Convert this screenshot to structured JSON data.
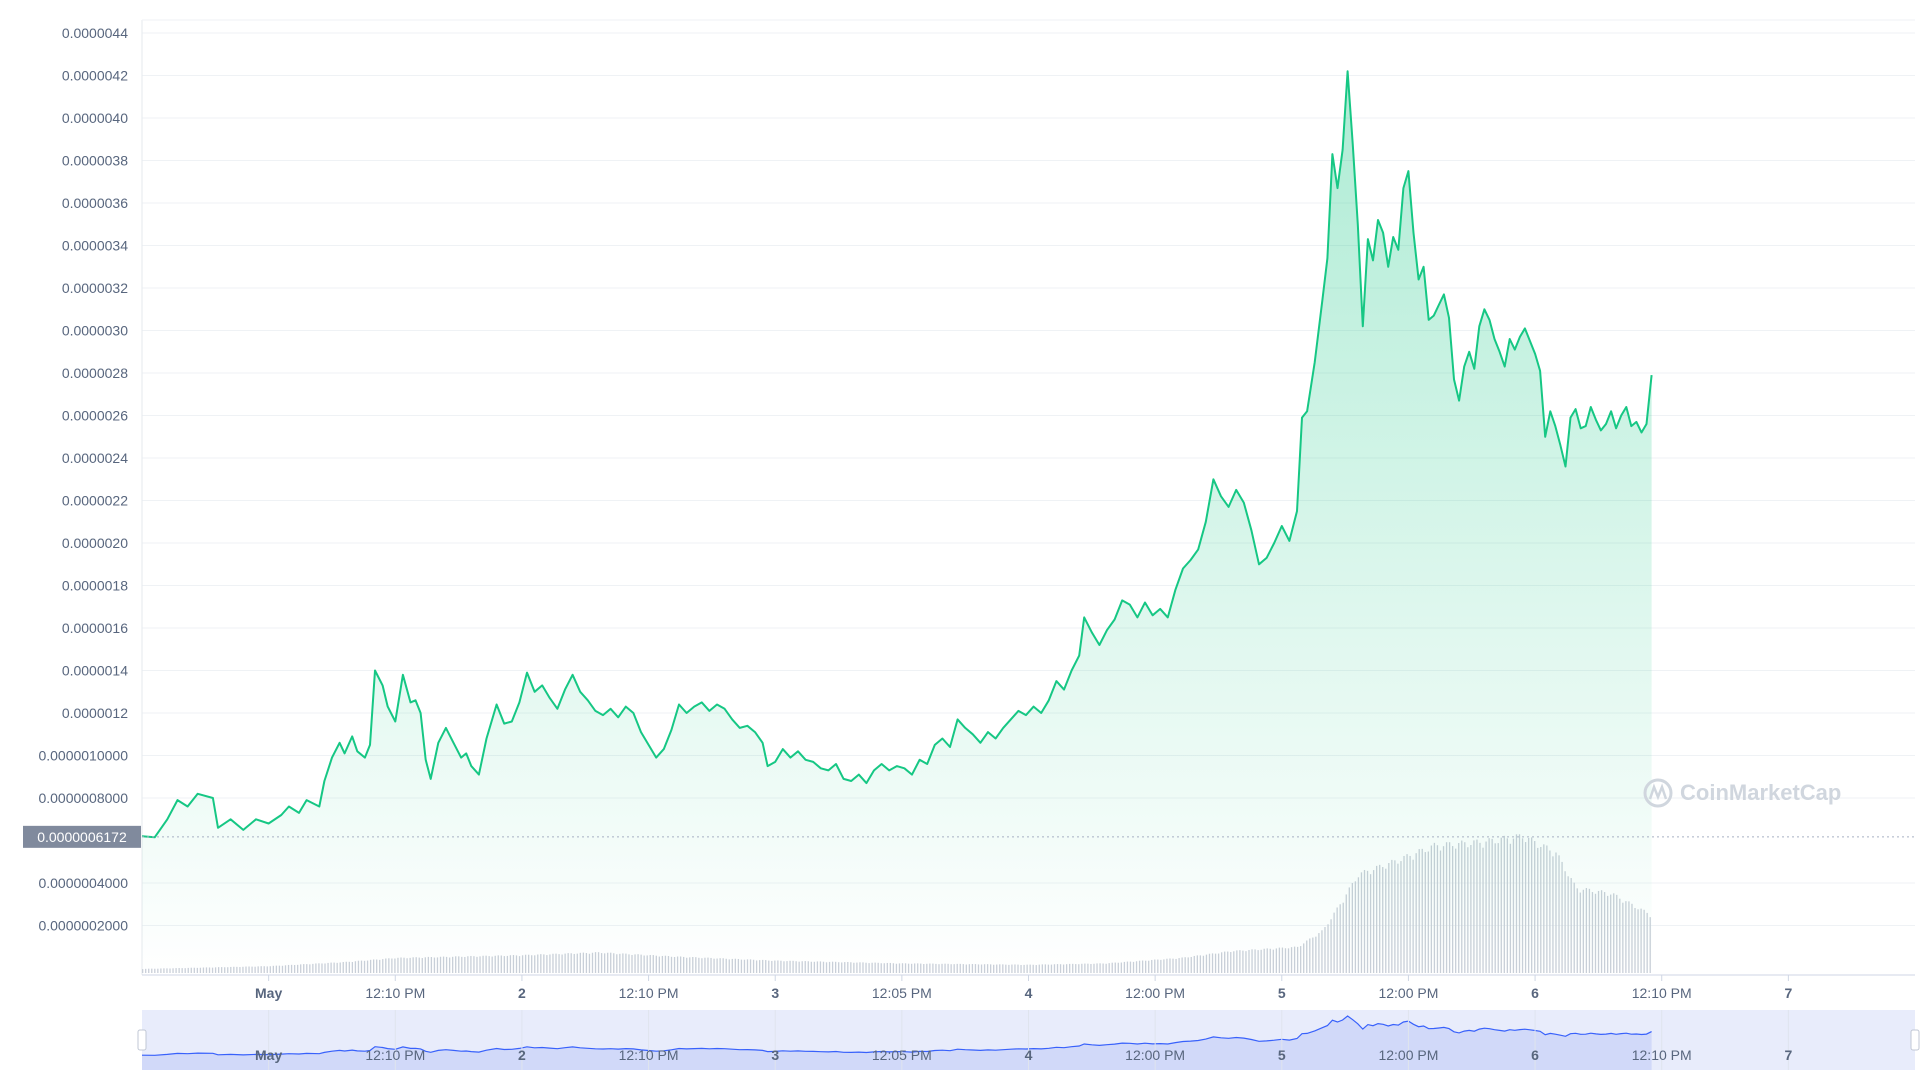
{
  "watermark": "CoinMarketCap",
  "current_price_label": "0.0000006172",
  "colors": {
    "line": "#16c784",
    "area_top": "#16c784",
    "volume_bar": "#c9cfd8",
    "navigator_fill": "#e8ecfb",
    "navigator_line": "#3861fb",
    "label_bg": "#808a9d"
  },
  "chart_data": {
    "type": "area",
    "title": "",
    "xlabel": "",
    "ylabel": "",
    "ylim": [
      0.0,
      4.4e-06
    ],
    "y_ticks": [
      {
        "v": 4.4e-06,
        "label": "0.0000044"
      },
      {
        "v": 4.2e-06,
        "label": "0.0000042"
      },
      {
        "v": 4e-06,
        "label": "0.0000040"
      },
      {
        "v": 3.8e-06,
        "label": "0.0000038"
      },
      {
        "v": 3.6e-06,
        "label": "0.0000036"
      },
      {
        "v": 3.4e-06,
        "label": "0.0000034"
      },
      {
        "v": 3.2e-06,
        "label": "0.0000032"
      },
      {
        "v": 3e-06,
        "label": "0.0000030"
      },
      {
        "v": 2.8e-06,
        "label": "0.0000028"
      },
      {
        "v": 2.6e-06,
        "label": "0.0000026"
      },
      {
        "v": 2.4e-06,
        "label": "0.0000024"
      },
      {
        "v": 2.2e-06,
        "label": "0.0000022"
      },
      {
        "v": 2e-06,
        "label": "0.0000020"
      },
      {
        "v": 1.8e-06,
        "label": "0.0000018"
      },
      {
        "v": 1.6e-06,
        "label": "0.0000016"
      },
      {
        "v": 1.4e-06,
        "label": "0.0000014"
      },
      {
        "v": 1.2e-06,
        "label": "0.0000012"
      },
      {
        "v": 1e-06,
        "label": "0.0000010000"
      },
      {
        "v": 8e-07,
        "label": "0.0000008000"
      },
      {
        "v": 4e-07,
        "label": "0.0000004000"
      },
      {
        "v": 2e-07,
        "label": "0.0000002000"
      }
    ],
    "x_ticks": [
      {
        "t": 0.5,
        "label": "May",
        "day": true
      },
      {
        "t": 1.0,
        "label": "12:10 PM",
        "day": false
      },
      {
        "t": 1.5,
        "label": "2",
        "day": true
      },
      {
        "t": 2.0,
        "label": "12:10 PM",
        "day": false
      },
      {
        "t": 2.5,
        "label": "3",
        "day": true
      },
      {
        "t": 3.0,
        "label": "12:05 PM",
        "day": false
      },
      {
        "t": 3.5,
        "label": "4",
        "day": true
      },
      {
        "t": 4.0,
        "label": "12:00 PM",
        "day": false
      },
      {
        "t": 4.5,
        "label": "5",
        "day": true
      },
      {
        "t": 5.0,
        "label": "12:00 PM",
        "day": false
      },
      {
        "t": 5.5,
        "label": "6",
        "day": true
      },
      {
        "t": 6.0,
        "label": "12:10 PM",
        "day": false
      },
      {
        "t": 6.5,
        "label": "7",
        "day": true
      }
    ],
    "xlim": [
      0.0,
      7.0
    ],
    "series": [
      {
        "values": [
          [
            0.0,
            6.2e-07
          ],
          [
            0.05,
            6.15e-07
          ],
          [
            0.1,
            7e-07
          ],
          [
            0.14,
            7.9e-07
          ],
          [
            0.18,
            7.6e-07
          ],
          [
            0.22,
            8.2e-07
          ],
          [
            0.28,
            8e-07
          ],
          [
            0.3,
            6.6e-07
          ],
          [
            0.35,
            7e-07
          ],
          [
            0.4,
            6.5e-07
          ],
          [
            0.45,
            7e-07
          ],
          [
            0.5,
            6.8e-07
          ],
          [
            0.55,
            7.2e-07
          ],
          [
            0.58,
            7.6e-07
          ],
          [
            0.62,
            7.3e-07
          ],
          [
            0.65,
            7.9e-07
          ],
          [
            0.7,
            7.6e-07
          ],
          [
            0.72,
            8.8e-07
          ],
          [
            0.75,
            9.9e-07
          ],
          [
            0.78,
            1.06e-06
          ],
          [
            0.8,
            1.01e-06
          ],
          [
            0.83,
            1.09e-06
          ],
          [
            0.85,
            1.02e-06
          ],
          [
            0.88,
            9.9e-07
          ],
          [
            0.9,
            1.05e-06
          ],
          [
            0.92,
            1.4e-06
          ],
          [
            0.95,
            1.33e-06
          ],
          [
            0.97,
            1.23e-06
          ],
          [
            1.0,
            1.16e-06
          ],
          [
            1.03,
            1.38e-06
          ],
          [
            1.06,
            1.25e-06
          ],
          [
            1.08,
            1.26e-06
          ],
          [
            1.1,
            1.2e-06
          ],
          [
            1.12,
            9.8e-07
          ],
          [
            1.14,
            8.9e-07
          ],
          [
            1.17,
            1.06e-06
          ],
          [
            1.2,
            1.13e-06
          ],
          [
            1.23,
            1.06e-06
          ],
          [
            1.26,
            9.9e-07
          ],
          [
            1.28,
            1.01e-06
          ],
          [
            1.3,
            9.5e-07
          ],
          [
            1.33,
            9.1e-07
          ],
          [
            1.36,
            1.08e-06
          ],
          [
            1.4,
            1.24e-06
          ],
          [
            1.43,
            1.15e-06
          ],
          [
            1.46,
            1.16e-06
          ],
          [
            1.49,
            1.25e-06
          ],
          [
            1.52,
            1.39e-06
          ],
          [
            1.55,
            1.3e-06
          ],
          [
            1.58,
            1.33e-06
          ],
          [
            1.61,
            1.27e-06
          ],
          [
            1.64,
            1.22e-06
          ],
          [
            1.67,
            1.31e-06
          ],
          [
            1.7,
            1.38e-06
          ],
          [
            1.73,
            1.3e-06
          ],
          [
            1.76,
            1.26e-06
          ],
          [
            1.79,
            1.21e-06
          ],
          [
            1.82,
            1.19e-06
          ],
          [
            1.85,
            1.22e-06
          ],
          [
            1.88,
            1.18e-06
          ],
          [
            1.91,
            1.23e-06
          ],
          [
            1.94,
            1.2e-06
          ],
          [
            1.97,
            1.11e-06
          ],
          [
            2.0,
            1.05e-06
          ],
          [
            2.03,
            9.9e-07
          ],
          [
            2.06,
            1.03e-06
          ],
          [
            2.09,
            1.12e-06
          ],
          [
            2.12,
            1.24e-06
          ],
          [
            2.15,
            1.2e-06
          ],
          [
            2.18,
            1.23e-06
          ],
          [
            2.21,
            1.25e-06
          ],
          [
            2.24,
            1.21e-06
          ],
          [
            2.27,
            1.24e-06
          ],
          [
            2.3,
            1.22e-06
          ],
          [
            2.33,
            1.17e-06
          ],
          [
            2.36,
            1.13e-06
          ],
          [
            2.39,
            1.14e-06
          ],
          [
            2.42,
            1.11e-06
          ],
          [
            2.45,
            1.06e-06
          ],
          [
            2.47,
            9.5e-07
          ],
          [
            2.5,
            9.7e-07
          ],
          [
            2.53,
            1.03e-06
          ],
          [
            2.56,
            9.9e-07
          ],
          [
            2.59,
            1.02e-06
          ],
          [
            2.62,
            9.8e-07
          ],
          [
            2.65,
            9.7e-07
          ],
          [
            2.68,
            9.4e-07
          ],
          [
            2.71,
            9.3e-07
          ],
          [
            2.74,
            9.6e-07
          ],
          [
            2.77,
            8.9e-07
          ],
          [
            2.8,
            8.8e-07
          ],
          [
            2.83,
            9.1e-07
          ],
          [
            2.86,
            8.7e-07
          ],
          [
            2.89,
            9.3e-07
          ],
          [
            2.92,
            9.6e-07
          ],
          [
            2.95,
            9.3e-07
          ],
          [
            2.98,
            9.5e-07
          ],
          [
            3.01,
            9.4e-07
          ],
          [
            3.04,
            9.1e-07
          ],
          [
            3.07,
            9.8e-07
          ],
          [
            3.1,
            9.6e-07
          ],
          [
            3.13,
            1.05e-06
          ],
          [
            3.16,
            1.08e-06
          ],
          [
            3.19,
            1.04e-06
          ],
          [
            3.22,
            1.17e-06
          ],
          [
            3.25,
            1.13e-06
          ],
          [
            3.28,
            1.1e-06
          ],
          [
            3.31,
            1.06e-06
          ],
          [
            3.34,
            1.11e-06
          ],
          [
            3.37,
            1.08e-06
          ],
          [
            3.4,
            1.13e-06
          ],
          [
            3.43,
            1.17e-06
          ],
          [
            3.46,
            1.21e-06
          ],
          [
            3.49,
            1.19e-06
          ],
          [
            3.52,
            1.23e-06
          ],
          [
            3.55,
            1.2e-06
          ],
          [
            3.58,
            1.26e-06
          ],
          [
            3.61,
            1.35e-06
          ],
          [
            3.64,
            1.31e-06
          ],
          [
            3.67,
            1.4e-06
          ],
          [
            3.7,
            1.47e-06
          ],
          [
            3.72,
            1.65e-06
          ],
          [
            3.75,
            1.58e-06
          ],
          [
            3.78,
            1.52e-06
          ],
          [
            3.81,
            1.59e-06
          ],
          [
            3.84,
            1.64e-06
          ],
          [
            3.87,
            1.73e-06
          ],
          [
            3.9,
            1.71e-06
          ],
          [
            3.93,
            1.65e-06
          ],
          [
            3.96,
            1.72e-06
          ],
          [
            3.99,
            1.66e-06
          ],
          [
            4.02,
            1.69e-06
          ],
          [
            4.05,
            1.65e-06
          ],
          [
            4.08,
            1.78e-06
          ],
          [
            4.11,
            1.88e-06
          ],
          [
            4.14,
            1.92e-06
          ],
          [
            4.17,
            1.97e-06
          ],
          [
            4.2,
            2.1e-06
          ],
          [
            4.23,
            2.3e-06
          ],
          [
            4.26,
            2.22e-06
          ],
          [
            4.29,
            2.17e-06
          ],
          [
            4.32,
            2.25e-06
          ],
          [
            4.35,
            2.19e-06
          ],
          [
            4.38,
            2.06e-06
          ],
          [
            4.41,
            1.9e-06
          ],
          [
            4.44,
            1.93e-06
          ],
          [
            4.47,
            2e-06
          ],
          [
            4.5,
            2.08e-06
          ],
          [
            4.53,
            2.01e-06
          ],
          [
            4.56,
            2.15e-06
          ],
          [
            4.58,
            2.59e-06
          ],
          [
            4.6,
            2.62e-06
          ],
          [
            4.63,
            2.85e-06
          ],
          [
            4.66,
            3.14e-06
          ],
          [
            4.68,
            3.34e-06
          ],
          [
            4.7,
            3.83e-06
          ],
          [
            4.72,
            3.67e-06
          ],
          [
            4.74,
            3.85e-06
          ],
          [
            4.76,
            4.22e-06
          ],
          [
            4.78,
            3.88e-06
          ],
          [
            4.8,
            3.5e-06
          ],
          [
            4.82,
            3.02e-06
          ],
          [
            4.84,
            3.43e-06
          ],
          [
            4.86,
            3.33e-06
          ],
          [
            4.88,
            3.52e-06
          ],
          [
            4.9,
            3.46e-06
          ],
          [
            4.92,
            3.3e-06
          ],
          [
            4.94,
            3.44e-06
          ],
          [
            4.96,
            3.38e-06
          ],
          [
            4.98,
            3.67e-06
          ],
          [
            5.0,
            3.75e-06
          ],
          [
            5.02,
            3.46e-06
          ],
          [
            5.04,
            3.24e-06
          ],
          [
            5.06,
            3.3e-06
          ],
          [
            5.08,
            3.05e-06
          ],
          [
            5.1,
            3.07e-06
          ],
          [
            5.12,
            3.12e-06
          ],
          [
            5.14,
            3.17e-06
          ],
          [
            5.16,
            3.06e-06
          ],
          [
            5.18,
            2.77e-06
          ],
          [
            5.2,
            2.67e-06
          ],
          [
            5.22,
            2.83e-06
          ],
          [
            5.24,
            2.9e-06
          ],
          [
            5.26,
            2.82e-06
          ],
          [
            5.28,
            3.02e-06
          ],
          [
            5.3,
            3.1e-06
          ],
          [
            5.32,
            3.05e-06
          ],
          [
            5.34,
            2.96e-06
          ],
          [
            5.36,
            2.9e-06
          ],
          [
            5.38,
            2.83e-06
          ],
          [
            5.4,
            2.96e-06
          ],
          [
            5.42,
            2.91e-06
          ],
          [
            5.44,
            2.97e-06
          ],
          [
            5.46,
            3.01e-06
          ],
          [
            5.48,
            2.95e-06
          ],
          [
            5.5,
            2.89e-06
          ],
          [
            5.52,
            2.81e-06
          ],
          [
            5.54,
            2.5e-06
          ],
          [
            5.56,
            2.62e-06
          ],
          [
            5.58,
            2.55e-06
          ],
          [
            5.6,
            2.46e-06
          ],
          [
            5.62,
            2.36e-06
          ],
          [
            5.64,
            2.59e-06
          ],
          [
            5.66,
            2.63e-06
          ],
          [
            5.68,
            2.54e-06
          ],
          [
            5.7,
            2.55e-06
          ],
          [
            5.72,
            2.64e-06
          ],
          [
            5.74,
            2.58e-06
          ],
          [
            5.76,
            2.53e-06
          ],
          [
            5.78,
            2.56e-06
          ],
          [
            5.8,
            2.62e-06
          ],
          [
            5.82,
            2.54e-06
          ],
          [
            5.84,
            2.6e-06
          ],
          [
            5.86,
            2.64e-06
          ],
          [
            5.88,
            2.55e-06
          ],
          [
            5.9,
            2.57e-06
          ],
          [
            5.92,
            2.52e-06
          ],
          [
            5.94,
            2.56e-06
          ],
          [
            5.96,
            2.79e-06
          ]
        ]
      }
    ],
    "volume_envelope": [
      [
        0.0,
        0.03
      ],
      [
        0.5,
        0.05
      ],
      [
        0.8,
        0.08
      ],
      [
        1.0,
        0.11
      ],
      [
        1.5,
        0.13
      ],
      [
        1.8,
        0.15
      ],
      [
        2.1,
        0.12
      ],
      [
        2.5,
        0.09
      ],
      [
        3.0,
        0.07
      ],
      [
        3.5,
        0.06
      ],
      [
        3.8,
        0.07
      ],
      [
        4.1,
        0.11
      ],
      [
        4.3,
        0.16
      ],
      [
        4.56,
        0.19
      ],
      [
        4.66,
        0.31
      ],
      [
        4.72,
        0.48
      ],
      [
        4.8,
        0.72
      ],
      [
        4.95,
        0.82
      ],
      [
        5.1,
        0.93
      ],
      [
        5.3,
        0.96
      ],
      [
        5.45,
        1.0
      ],
      [
        5.58,
        0.88
      ],
      [
        5.66,
        0.62
      ],
      [
        5.8,
        0.58
      ],
      [
        5.96,
        0.42
      ]
    ],
    "legend": "none",
    "grid": true
  }
}
